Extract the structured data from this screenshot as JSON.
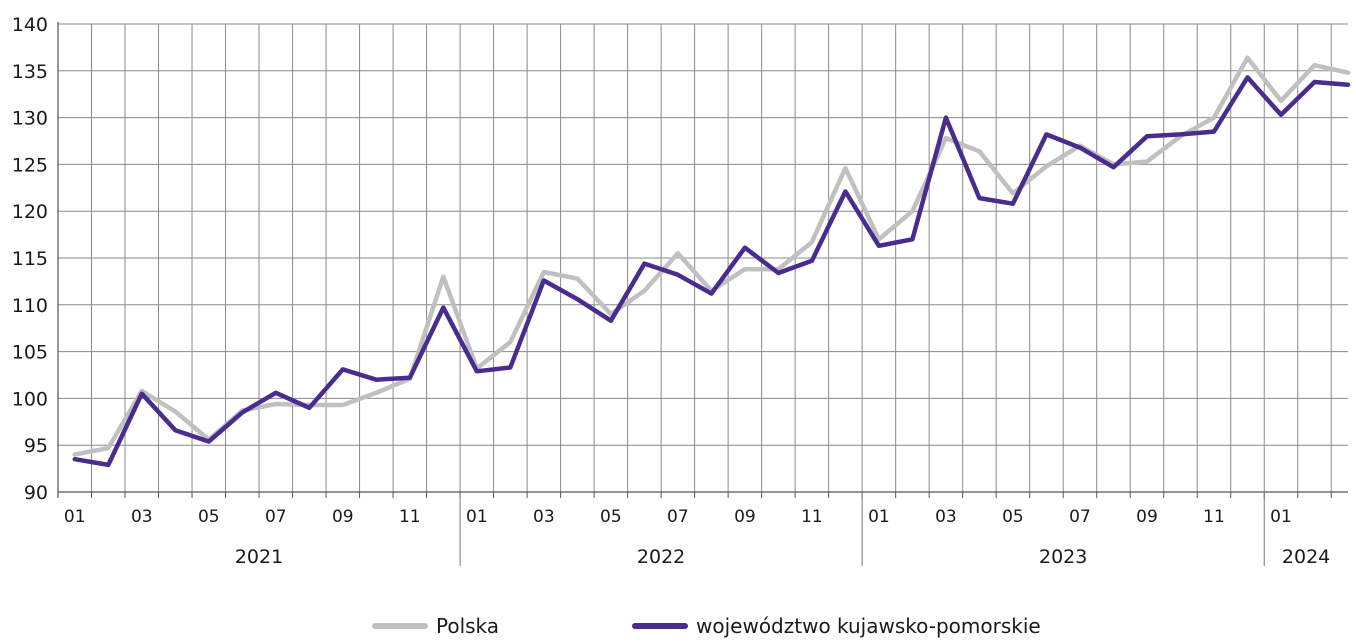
{
  "chart_data": {
    "type": "line",
    "ylim": [
      90,
      140
    ],
    "yticks": [
      90,
      95,
      100,
      105,
      110,
      115,
      120,
      125,
      130,
      135,
      140
    ],
    "x": [
      "01",
      "02",
      "03",
      "04",
      "05",
      "06",
      "07",
      "08",
      "09",
      "10",
      "11",
      "12",
      "01",
      "02",
      "03",
      "04",
      "05",
      "06",
      "07",
      "08",
      "09",
      "10",
      "11",
      "12",
      "01",
      "02",
      "03",
      "04",
      "05",
      "06",
      "07",
      "08",
      "09",
      "10",
      "11",
      "12",
      "01",
      "02",
      "03"
    ],
    "month_labels": [
      "01",
      "03",
      "05",
      "07",
      "09",
      "11",
      "01",
      "03",
      "05",
      "07",
      "09",
      "11",
      "01",
      "03",
      "05",
      "07",
      "09",
      "11",
      "01"
    ],
    "years": [
      {
        "label": "2021",
        "start": 0,
        "end": 11
      },
      {
        "label": "2022",
        "start": 12,
        "end": 23
      },
      {
        "label": "2023",
        "start": 24,
        "end": 35
      },
      {
        "label": "2024",
        "start": 36,
        "end": 38
      }
    ],
    "grid": true,
    "legend_position": "bottom",
    "series": [
      {
        "name": "Polska",
        "color": "#c0c0c0",
        "values": [
          94.0,
          94.7,
          100.8,
          98.6,
          95.6,
          98.7,
          99.4,
          99.3,
          99.3,
          100.6,
          102.1,
          113.0,
          103.2,
          106.0,
          113.5,
          112.8,
          109.0,
          111.5,
          115.5,
          111.5,
          113.8,
          113.8,
          116.7,
          124.6,
          117.0,
          120.0,
          127.8,
          126.4,
          121.9,
          124.8,
          127.0,
          125.0,
          125.3,
          128.0,
          130.0,
          136.4,
          131.8,
          135.6,
          134.8
        ]
      },
      {
        "name": "województwo kujawsko-pomorskie",
        "color": "#4a2c8f",
        "values": [
          93.5,
          92.9,
          100.5,
          96.6,
          95.4,
          98.5,
          100.6,
          99.0,
          103.1,
          102.0,
          102.2,
          109.7,
          102.9,
          103.3,
          112.6,
          110.6,
          108.3,
          114.4,
          113.2,
          111.2,
          116.1,
          113.4,
          114.7,
          122.1,
          116.3,
          117.0,
          130.0,
          121.4,
          120.8,
          128.2,
          126.8,
          124.7,
          128.0,
          128.2,
          128.5,
          134.3,
          130.3,
          133.8,
          133.5
        ]
      }
    ]
  }
}
